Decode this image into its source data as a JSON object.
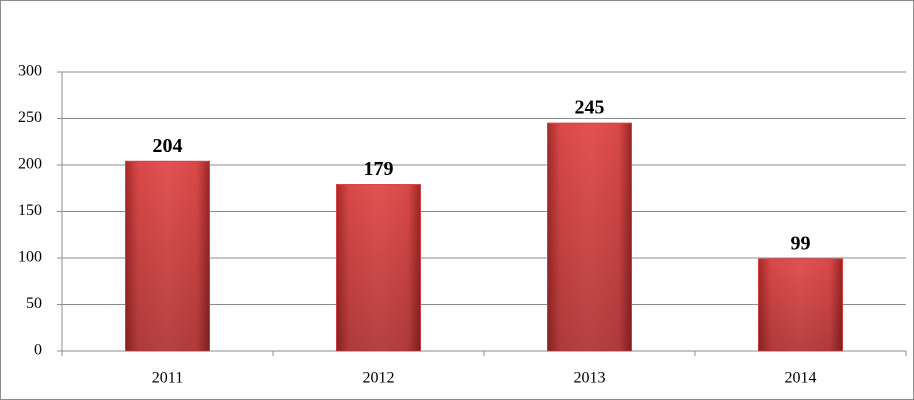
{
  "chart_data": {
    "type": "bar",
    "categories": [
      "2011",
      "2012",
      "2013",
      "2014"
    ],
    "values": [
      204,
      179,
      245,
      99
    ],
    "color": "#d94040",
    "ylim": [
      0,
      300
    ],
    "yticks": [
      0,
      50,
      100,
      150,
      200,
      250,
      300
    ],
    "grid": true
  }
}
